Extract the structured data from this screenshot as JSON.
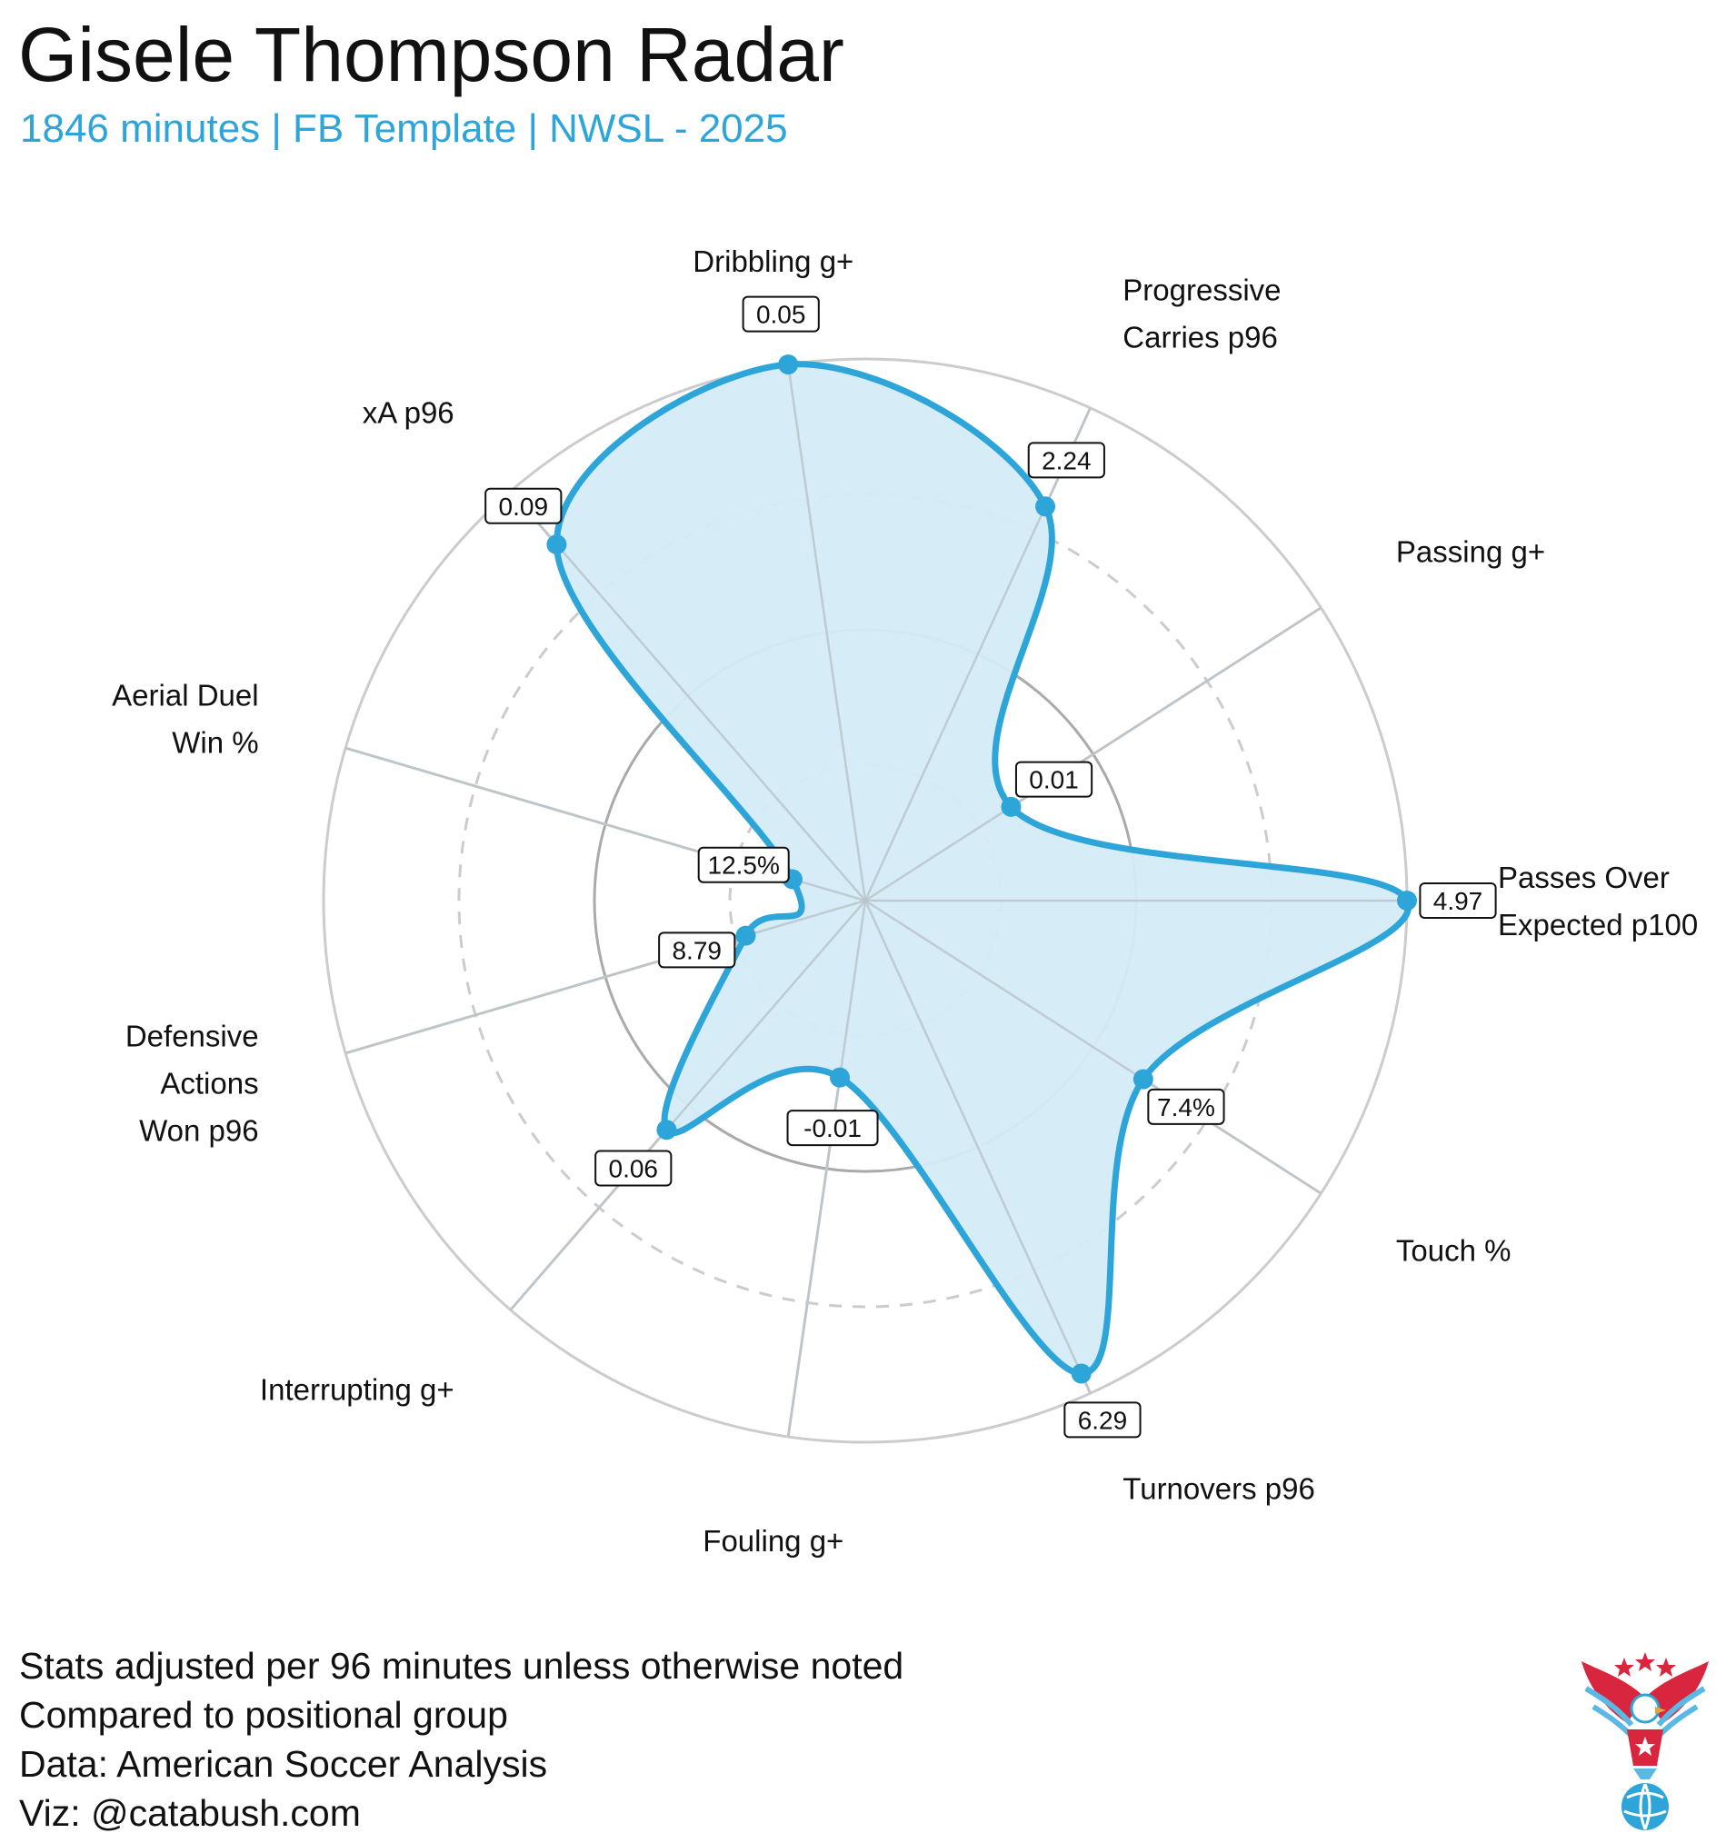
{
  "header": {
    "title": "Gisele Thompson Radar",
    "subtitle": "1846 minutes | FB Template | NWSL - 2025"
  },
  "chart_data": {
    "type": "radar",
    "title": "Gisele Thompson Radar",
    "subtitle": "1846 minutes | FB Template | NWSL - 2025",
    "rlim": [
      0,
      1
    ],
    "rings": [
      0.25,
      0.5,
      0.75,
      1.0
    ],
    "series": [
      {
        "name": "Gisele Thompson",
        "metrics": [
          {
            "label": [
              "Passes Over",
              "Expected p100"
            ],
            "value_label": "4.97",
            "percentile": 1.0
          },
          {
            "label": [
              "Passing g+"
            ],
            "value_label": "0.01",
            "percentile": 0.32
          },
          {
            "label": [
              "Progressive",
              "Carries p96"
            ],
            "value_label": "2.24",
            "percentile": 0.8
          },
          {
            "label": [
              "Dribbling g+"
            ],
            "value_label": "0.05",
            "percentile": 1.0
          },
          {
            "label": [
              "xA p96"
            ],
            "value_label": "0.09",
            "percentile": 0.87
          },
          {
            "label": [
              "Aerial Duel",
              "Win %"
            ],
            "value_label": "12.5%",
            "percentile": 0.14
          },
          {
            "label": [
              "Defensive",
              "Actions",
              "Won p96"
            ],
            "value_label": "8.79",
            "percentile": 0.23
          },
          {
            "label": [
              "Interrupting g+"
            ],
            "value_label": "0.06",
            "percentile": 0.56
          },
          {
            "label": [
              "Fouling g+"
            ],
            "value_label": "-0.01",
            "percentile": 0.33
          },
          {
            "label": [
              "Turnovers p96"
            ],
            "value_label": "6.29",
            "percentile": 0.96
          },
          {
            "label": [
              "Touch %"
            ],
            "value_label": "7.4%",
            "percentile": 0.61
          }
        ]
      }
    ],
    "colors": {
      "line": "#2ea5d9",
      "fill": "#d4ecf8",
      "grid": "#cccccc",
      "ring_inner": "#aaaaaa"
    }
  },
  "footer": {
    "lines": [
      "Stats adjusted per 96 minutes unless otherwise noted",
      "Compared to positional group",
      "Data: American Soccer Analysis",
      "Viz: @catabush.com"
    ]
  },
  "logo": {
    "icon": "eagle-soccer-ball-icon"
  }
}
